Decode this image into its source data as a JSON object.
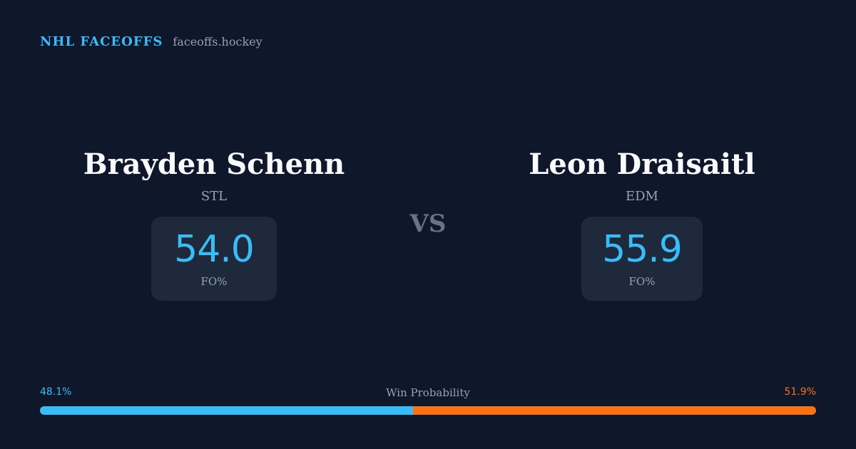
{
  "brand": {
    "name": "NHL FACEOFFS",
    "url": "faceoffs.hockey"
  },
  "players": [
    {
      "name": "Brayden Schenn",
      "team": "STL",
      "fo_value": "54.0",
      "fo_label": "FO%"
    },
    {
      "name": "Leon Draisaitl",
      "team": "EDM",
      "fo_value": "55.9",
      "fo_label": "FO%"
    }
  ],
  "vs_label": "VS",
  "win_probability": {
    "title": "Win Probability",
    "left_label": "48.1%",
    "right_label": "51.9%",
    "left_fraction": 0.481,
    "left_color": "#38bdf8",
    "right_color": "#f97316"
  }
}
